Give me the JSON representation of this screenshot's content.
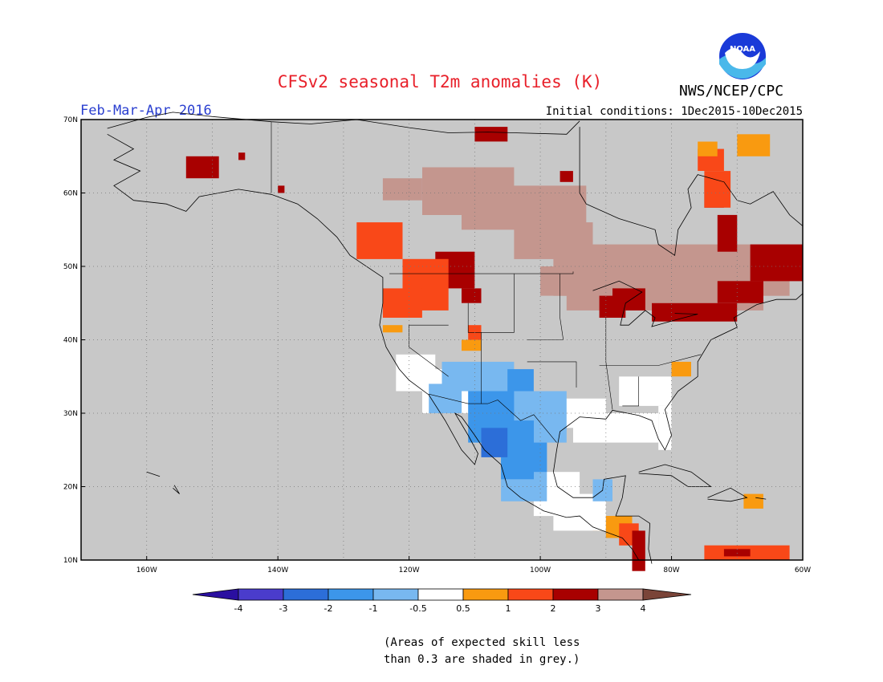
{
  "header": {
    "title": "CFSv2 seasonal T2m anomalies (K)",
    "period": "Feb-Mar-Apr 2016",
    "initial_conditions": "Initial conditions: 1Dec2015-10Dec2015",
    "agency": "NWS/NCEP/CPC",
    "logo_text": "NOAA"
  },
  "map": {
    "lat_ticks": [
      "70N",
      "60N",
      "50N",
      "40N",
      "30N",
      "20N",
      "10N"
    ],
    "lon_ticks": [
      "160W",
      "140W",
      "120W",
      "100W",
      "80W",
      "60W"
    ],
    "lat_range": [
      10,
      70
    ],
    "lon_range": [
      -170,
      -60
    ],
    "grey_color": "#c8c8c8"
  },
  "colorbar": {
    "labels": [
      "-4",
      "-3",
      "-2",
      "-1",
      "-0.5",
      "0.5",
      "1",
      "2",
      "3",
      "4"
    ],
    "colors": [
      "#2a0fa0",
      "#4a3ccc",
      "#2c6ed8",
      "#3c96ea",
      "#78b8f0",
      "#ffffff",
      "#f99a10",
      "#f94818",
      "#a80000",
      "#c4968e",
      "#7a4438"
    ]
  },
  "footnote": {
    "line1": "(Areas of expected skill less",
    "line2": "than 0.3 are shaded in grey.)"
  }
}
